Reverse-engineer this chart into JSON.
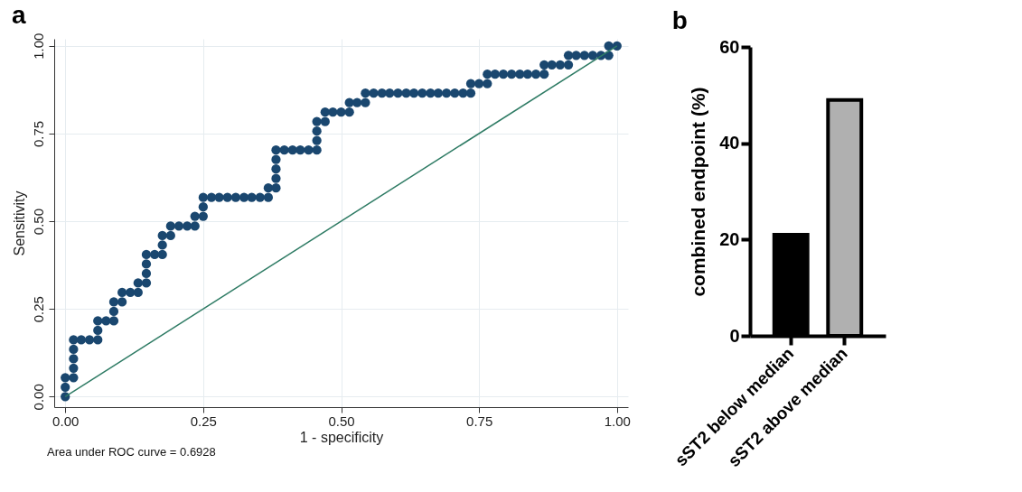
{
  "chart_data": [
    {
      "type": "line",
      "title": "a",
      "xlabel": "1 - specificity",
      "ylabel": "Sensitivity",
      "annotations": [
        "Area under ROC curve = 0.6928"
      ],
      "xlim": [
        -0.02,
        1.02
      ],
      "ylim": [
        -0.03,
        1.02
      ],
      "xticks": [
        {
          "value": 0,
          "label": "0.00"
        },
        0.25,
        {
          "value": 0.5,
          "label": "0.50"
        },
        0.75,
        {
          "value": 1,
          "label": "1.00"
        }
      ],
      "yticks": [
        {
          "value": 0,
          "label": "0.00"
        },
        0.25,
        {
          "value": 0.5,
          "label": "0.50"
        },
        0.75,
        {
          "value": 1,
          "label": "1.00"
        }
      ],
      "grid": true,
      "series": [
        {
          "type": "scatter",
          "color": "#1a476f",
          "marker": "circle",
          "x": [
            0,
            0,
            0,
            0.015,
            0.015,
            0.015,
            0.015,
            0.015,
            0.029,
            0.044,
            0.059,
            0.059,
            0.059,
            0.074,
            0.088,
            0.088,
            0.088,
            0.103,
            0.103,
            0.118,
            0.132,
            0.132,
            0.147,
            0.147,
            0.147,
            0.147,
            0.162,
            0.176,
            0.176,
            0.176,
            0.191,
            0.191,
            0.206,
            0.221,
            0.235,
            0.235,
            0.25,
            0.25,
            0.25,
            0.265,
            0.279,
            0.294,
            0.309,
            0.324,
            0.338,
            0.353,
            0.368,
            0.368,
            0.382,
            0.382,
            0.382,
            0.382,
            0.382,
            0.397,
            0.412,
            0.426,
            0.441,
            0.456,
            0.456,
            0.456,
            0.456,
            0.471,
            0.471,
            0.485,
            0.5,
            0.515,
            0.515,
            0.529,
            0.544,
            0.544,
            0.559,
            0.574,
            0.588,
            0.603,
            0.618,
            0.632,
            0.647,
            0.662,
            0.676,
            0.691,
            0.706,
            0.721,
            0.735,
            0.735,
            0.75,
            0.765,
            0.765,
            0.779,
            0.794,
            0.809,
            0.824,
            0.838,
            0.853,
            0.868,
            0.868,
            0.882,
            0.897,
            0.912,
            0.912,
            0.926,
            0.941,
            0.956,
            0.971,
            0.985,
            0.985,
            1
          ],
          "values": [
            0,
            0.027,
            0.054,
            0.054,
            0.081,
            0.108,
            0.135,
            0.162,
            0.162,
            0.162,
            0.162,
            0.189,
            0.216,
            0.216,
            0.216,
            0.243,
            0.27,
            0.27,
            0.297,
            0.297,
            0.297,
            0.324,
            0.324,
            0.351,
            0.378,
            0.405,
            0.405,
            0.405,
            0.432,
            0.459,
            0.459,
            0.486,
            0.486,
            0.486,
            0.486,
            0.514,
            0.514,
            0.541,
            0.568,
            0.568,
            0.568,
            0.568,
            0.568,
            0.568,
            0.568,
            0.568,
            0.568,
            0.595,
            0.595,
            0.622,
            0.649,
            0.676,
            0.703,
            0.703,
            0.703,
            0.703,
            0.703,
            0.703,
            0.73,
            0.757,
            0.784,
            0.784,
            0.811,
            0.811,
            0.811,
            0.811,
            0.838,
            0.838,
            0.838,
            0.865,
            0.865,
            0.865,
            0.865,
            0.865,
            0.865,
            0.865,
            0.865,
            0.865,
            0.865,
            0.865,
            0.865,
            0.865,
            0.865,
            0.892,
            0.892,
            0.892,
            0.919,
            0.919,
            0.919,
            0.919,
            0.919,
            0.919,
            0.919,
            0.919,
            0.946,
            0.946,
            0.946,
            0.946,
            0.973,
            0.973,
            0.973,
            0.973,
            0.973,
            0.973,
            1,
            1
          ]
        },
        {
          "color": "#2e7b64",
          "x": [
            0,
            1
          ],
          "values": [
            0,
            1
          ]
        }
      ]
    },
    {
      "type": "bar",
      "title": "b",
      "ylabel": "combined endpoint (%)",
      "categories": [
        "sST2 below median",
        "sST2 above median"
      ],
      "values": [
        21,
        49
      ],
      "colors": [
        "#000000",
        "#b0b0b0"
      ],
      "ylim": [
        0,
        60
      ],
      "yticks": [
        0,
        20,
        40,
        60
      ]
    }
  ]
}
